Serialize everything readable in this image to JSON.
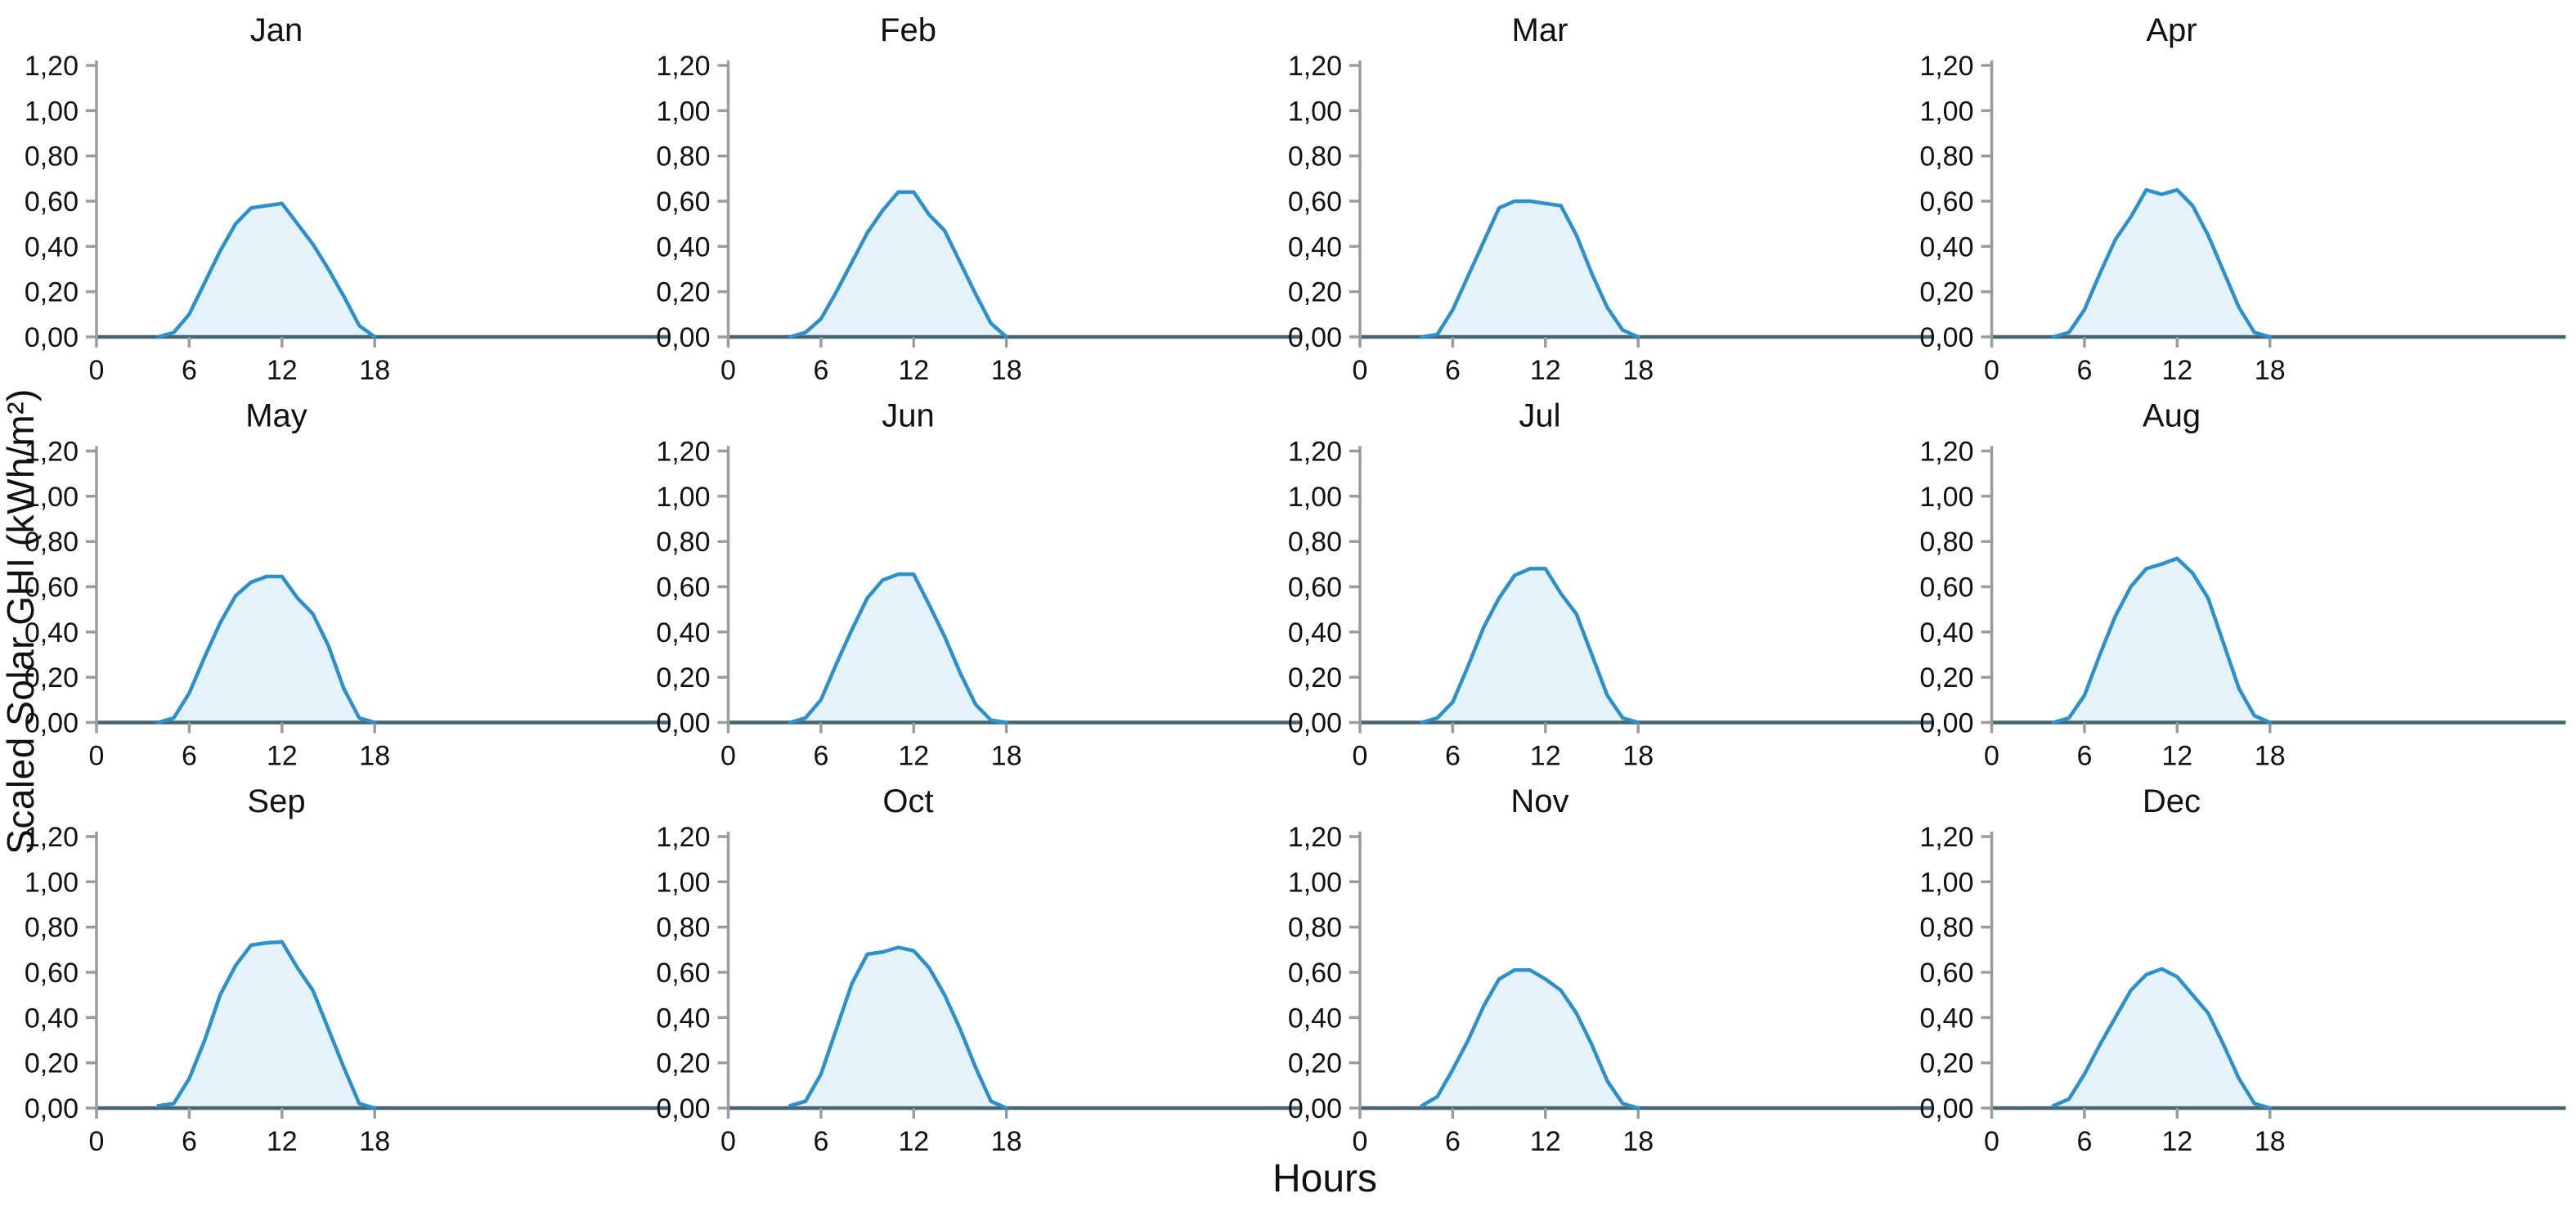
{
  "figure": {
    "ylabel": "Scaled Solar GHI (kWh/m²)",
    "xlabel": "Hours"
  },
  "chart_data": {
    "type": "area",
    "layout": "3 rows x 4 cols, one subplot per month",
    "x": [
      0,
      1,
      2,
      3,
      4,
      5,
      6,
      7,
      8,
      9,
      10,
      11,
      12,
      13,
      14,
      15,
      16,
      17,
      18,
      19,
      20,
      21,
      22,
      23
    ],
    "xlabel": "Hours",
    "ylabel": "Scaled Solar GHI (kWh/m²)",
    "xlim": [
      0,
      23
    ],
    "ylim": [
      0,
      1.2
    ],
    "xticks": [
      0,
      6,
      12,
      18
    ],
    "ytick_values": [
      0.0,
      0.2,
      0.4,
      0.6,
      0.8,
      1.0,
      1.2
    ],
    "ytick_labels": [
      "0,00",
      "0,20",
      "0,40",
      "0,60",
      "0,80",
      "1,00",
      "1,20"
    ],
    "grid": false,
    "legend": "none",
    "colors": {
      "line": "#2e90c8",
      "fill": "#e4f2fa",
      "baseline": "#456570",
      "axis": "#9b9b9b",
      "text": "#111111"
    },
    "series": [
      {
        "name": "Jan",
        "values": [
          0,
          0,
          0,
          0,
          0,
          0.02,
          0.1,
          0.24,
          0.38,
          0.5,
          0.57,
          0.58,
          0.59,
          0.5,
          0.41,
          0.3,
          0.18,
          0.05,
          0,
          0,
          0,
          0,
          0,
          0
        ]
      },
      {
        "name": "Feb",
        "values": [
          0,
          0,
          0,
          0,
          0,
          0.02,
          0.08,
          0.2,
          0.33,
          0.46,
          0.56,
          0.64,
          0.64,
          0.54,
          0.47,
          0.33,
          0.19,
          0.06,
          0,
          0,
          0,
          0,
          0,
          0
        ]
      },
      {
        "name": "Mar",
        "values": [
          0,
          0,
          0,
          0,
          0,
          0.01,
          0.12,
          0.27,
          0.42,
          0.57,
          0.6,
          0.6,
          0.59,
          0.58,
          0.45,
          0.28,
          0.13,
          0.03,
          0,
          0,
          0,
          0,
          0,
          0
        ]
      },
      {
        "name": "Apr",
        "values": [
          0,
          0,
          0,
          0,
          0,
          0.02,
          0.12,
          0.28,
          0.43,
          0.53,
          0.65,
          0.63,
          0.65,
          0.58,
          0.45,
          0.29,
          0.13,
          0.02,
          0,
          0,
          0,
          0,
          0,
          0
        ]
      },
      {
        "name": "May",
        "values": [
          0,
          0,
          0,
          0,
          0,
          0.02,
          0.13,
          0.29,
          0.44,
          0.56,
          0.62,
          0.645,
          0.645,
          0.55,
          0.48,
          0.34,
          0.15,
          0.02,
          0,
          0,
          0,
          0,
          0,
          0
        ]
      },
      {
        "name": "Jun",
        "values": [
          0,
          0,
          0,
          0,
          0,
          0.02,
          0.1,
          0.26,
          0.41,
          0.55,
          0.63,
          0.655,
          0.655,
          0.52,
          0.38,
          0.22,
          0.08,
          0.01,
          0,
          0,
          0,
          0,
          0,
          0
        ]
      },
      {
        "name": "Jul",
        "values": [
          0,
          0,
          0,
          0,
          0,
          0.02,
          0.09,
          0.25,
          0.42,
          0.55,
          0.65,
          0.68,
          0.68,
          0.57,
          0.48,
          0.3,
          0.12,
          0.02,
          0,
          0,
          0,
          0,
          0,
          0
        ]
      },
      {
        "name": "Aug",
        "values": [
          0,
          0,
          0,
          0,
          0,
          0.02,
          0.12,
          0.3,
          0.47,
          0.6,
          0.68,
          0.7,
          0.725,
          0.66,
          0.55,
          0.35,
          0.15,
          0.03,
          0,
          0,
          0,
          0,
          0,
          0
        ]
      },
      {
        "name": "Sep",
        "values": [
          0,
          0,
          0,
          0,
          0.01,
          0.02,
          0.13,
          0.3,
          0.5,
          0.63,
          0.72,
          0.73,
          0.735,
          0.62,
          0.52,
          0.35,
          0.18,
          0.02,
          0,
          0,
          0,
          0,
          0,
          0
        ]
      },
      {
        "name": "Oct",
        "values": [
          0,
          0,
          0,
          0,
          0.01,
          0.03,
          0.15,
          0.35,
          0.55,
          0.68,
          0.69,
          0.71,
          0.695,
          0.62,
          0.5,
          0.35,
          0.18,
          0.03,
          0,
          0,
          0,
          0,
          0,
          0
        ]
      },
      {
        "name": "Nov",
        "values": [
          0,
          0,
          0,
          0,
          0.01,
          0.05,
          0.17,
          0.3,
          0.45,
          0.57,
          0.61,
          0.61,
          0.57,
          0.52,
          0.42,
          0.28,
          0.12,
          0.02,
          0,
          0,
          0,
          0,
          0,
          0
        ]
      },
      {
        "name": "Dec",
        "values": [
          0,
          0,
          0,
          0,
          0.01,
          0.04,
          0.15,
          0.28,
          0.4,
          0.52,
          0.59,
          0.615,
          0.58,
          0.5,
          0.42,
          0.28,
          0.13,
          0.02,
          0,
          0,
          0,
          0,
          0,
          0
        ]
      }
    ]
  }
}
